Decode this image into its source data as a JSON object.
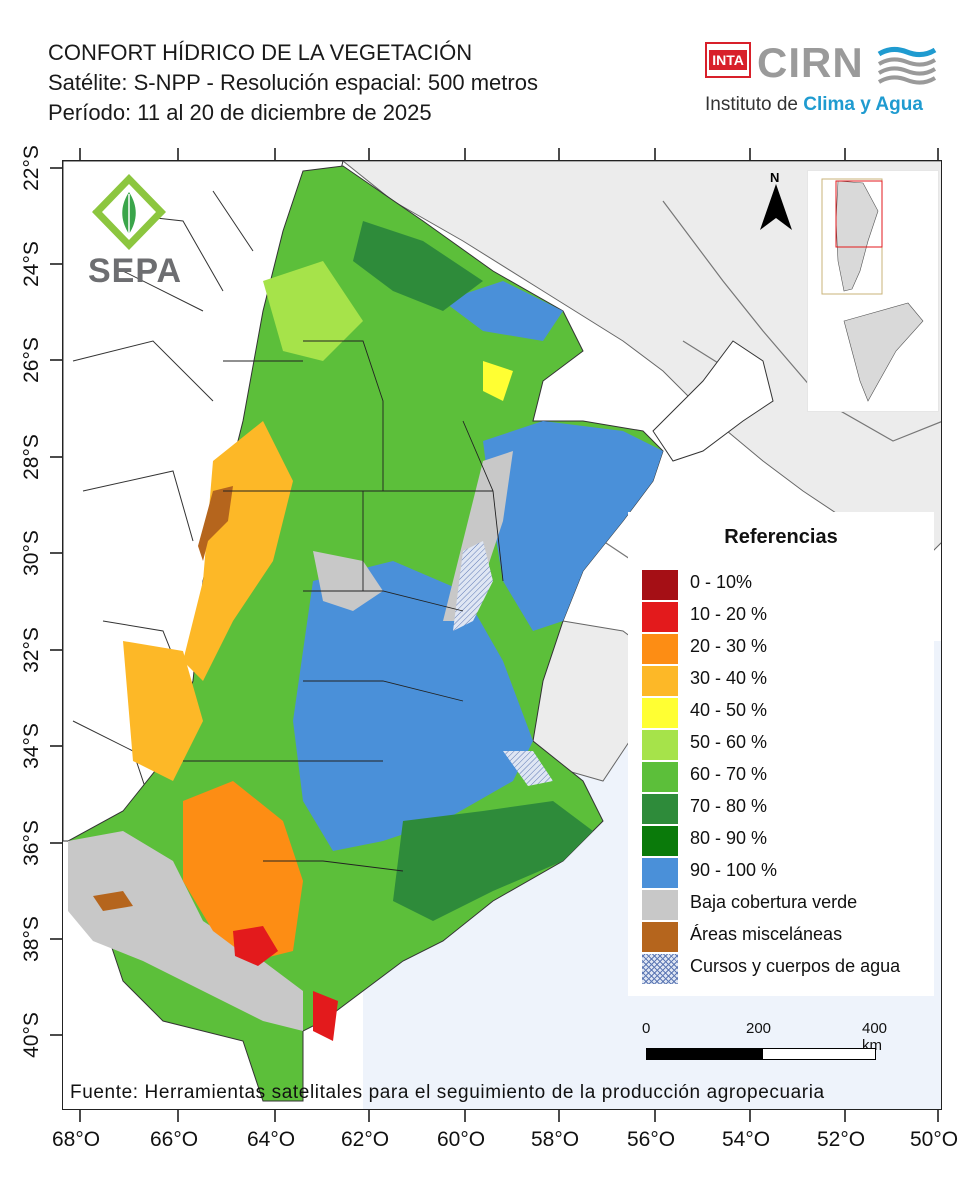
{
  "header": {
    "title": "CONFORT HÍDRICO DE LA VEGETACIÓN",
    "satellite": "Satélite: S-NPP - Resolución espacial: 500 metros",
    "period": "Período: 11 al 20 de diciembre de 2025"
  },
  "logos": {
    "inta": "INTA",
    "cirn": "CIRN",
    "cirn_subtitle_prefix": "Instituto de ",
    "cirn_subtitle_accent": "Clima y Agua",
    "sepa": "SEPA"
  },
  "map": {
    "north_label": "N",
    "lat_labels": [
      "22°S",
      "24°S",
      "26°S",
      "28°S",
      "30°S",
      "32°S",
      "34°S",
      "36°S",
      "38°S",
      "40°S"
    ],
    "lon_labels": [
      "68°O",
      "66°O",
      "64°O",
      "62°O",
      "60°O",
      "58°O",
      "56°O",
      "54°O",
      "52°O",
      "50°O"
    ]
  },
  "legend": {
    "title": "Referencias",
    "items": [
      {
        "label": "0 - 10%",
        "color": "#a50f15"
      },
      {
        "label": "10 - 20 %",
        "color": "#e31a1c"
      },
      {
        "label": "20 - 30 %",
        "color": "#fd8d14"
      },
      {
        "label": "30 - 40 %",
        "color": "#fdb827"
      },
      {
        "label": "40 - 50 %",
        "color": "#ffff33"
      },
      {
        "label": "50 - 60 %",
        "color": "#a6e34a"
      },
      {
        "label": "60 - 70 %",
        "color": "#5cbf3a"
      },
      {
        "label": "70 - 80 %",
        "color": "#2e8b3a"
      },
      {
        "label": "80 - 90 %",
        "color": "#0a7a0a"
      },
      {
        "label": "90 - 100 %",
        "color": "#4a90d9"
      },
      {
        "label": "Baja cobertura verde",
        "color": "#c8c8c8"
      },
      {
        "label": "Áreas misceláneas",
        "color": "#b5651d"
      },
      {
        "label": "Cursos y cuerpos de agua",
        "color": "water"
      }
    ]
  },
  "scale": {
    "labels": [
      "0",
      "200",
      "400 km"
    ]
  },
  "footer": {
    "source": "Fuente: Herramientas satelitales para el seguimiento de la producción agropecuaria"
  }
}
